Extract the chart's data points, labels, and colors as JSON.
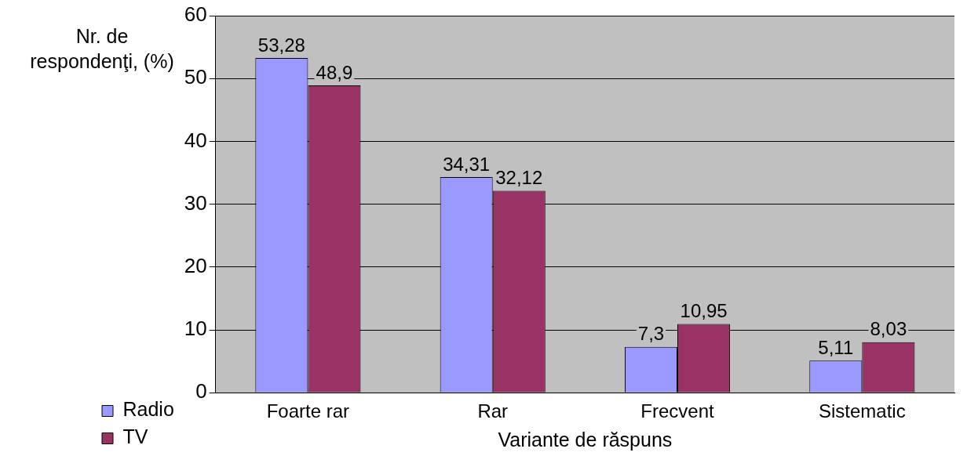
{
  "chart_data": {
    "type": "bar",
    "xlabel": "Variante de răspuns",
    "ylabel": "Nr. de respondenţi, (%)",
    "categories": [
      "Foarte rar",
      "Rar",
      "Frecvent",
      "Sistematic"
    ],
    "series": [
      {
        "name": "Radio",
        "color": "#9999ff",
        "values": [
          53.28,
          34.31,
          7.3,
          5.11
        ],
        "value_labels": [
          "53,28",
          "34,31",
          "7,3",
          "5,11"
        ]
      },
      {
        "name": "TV",
        "color": "#993366",
        "values": [
          48.9,
          32.12,
          10.95,
          8.03
        ],
        "value_labels": [
          "48,9",
          "32,12",
          "10,95",
          "8,03"
        ]
      }
    ],
    "ylim": [
      0,
      60
    ],
    "yticks": [
      0,
      10,
      20,
      30,
      40,
      50,
      60
    ],
    "grid": "y",
    "legend": "left"
  }
}
